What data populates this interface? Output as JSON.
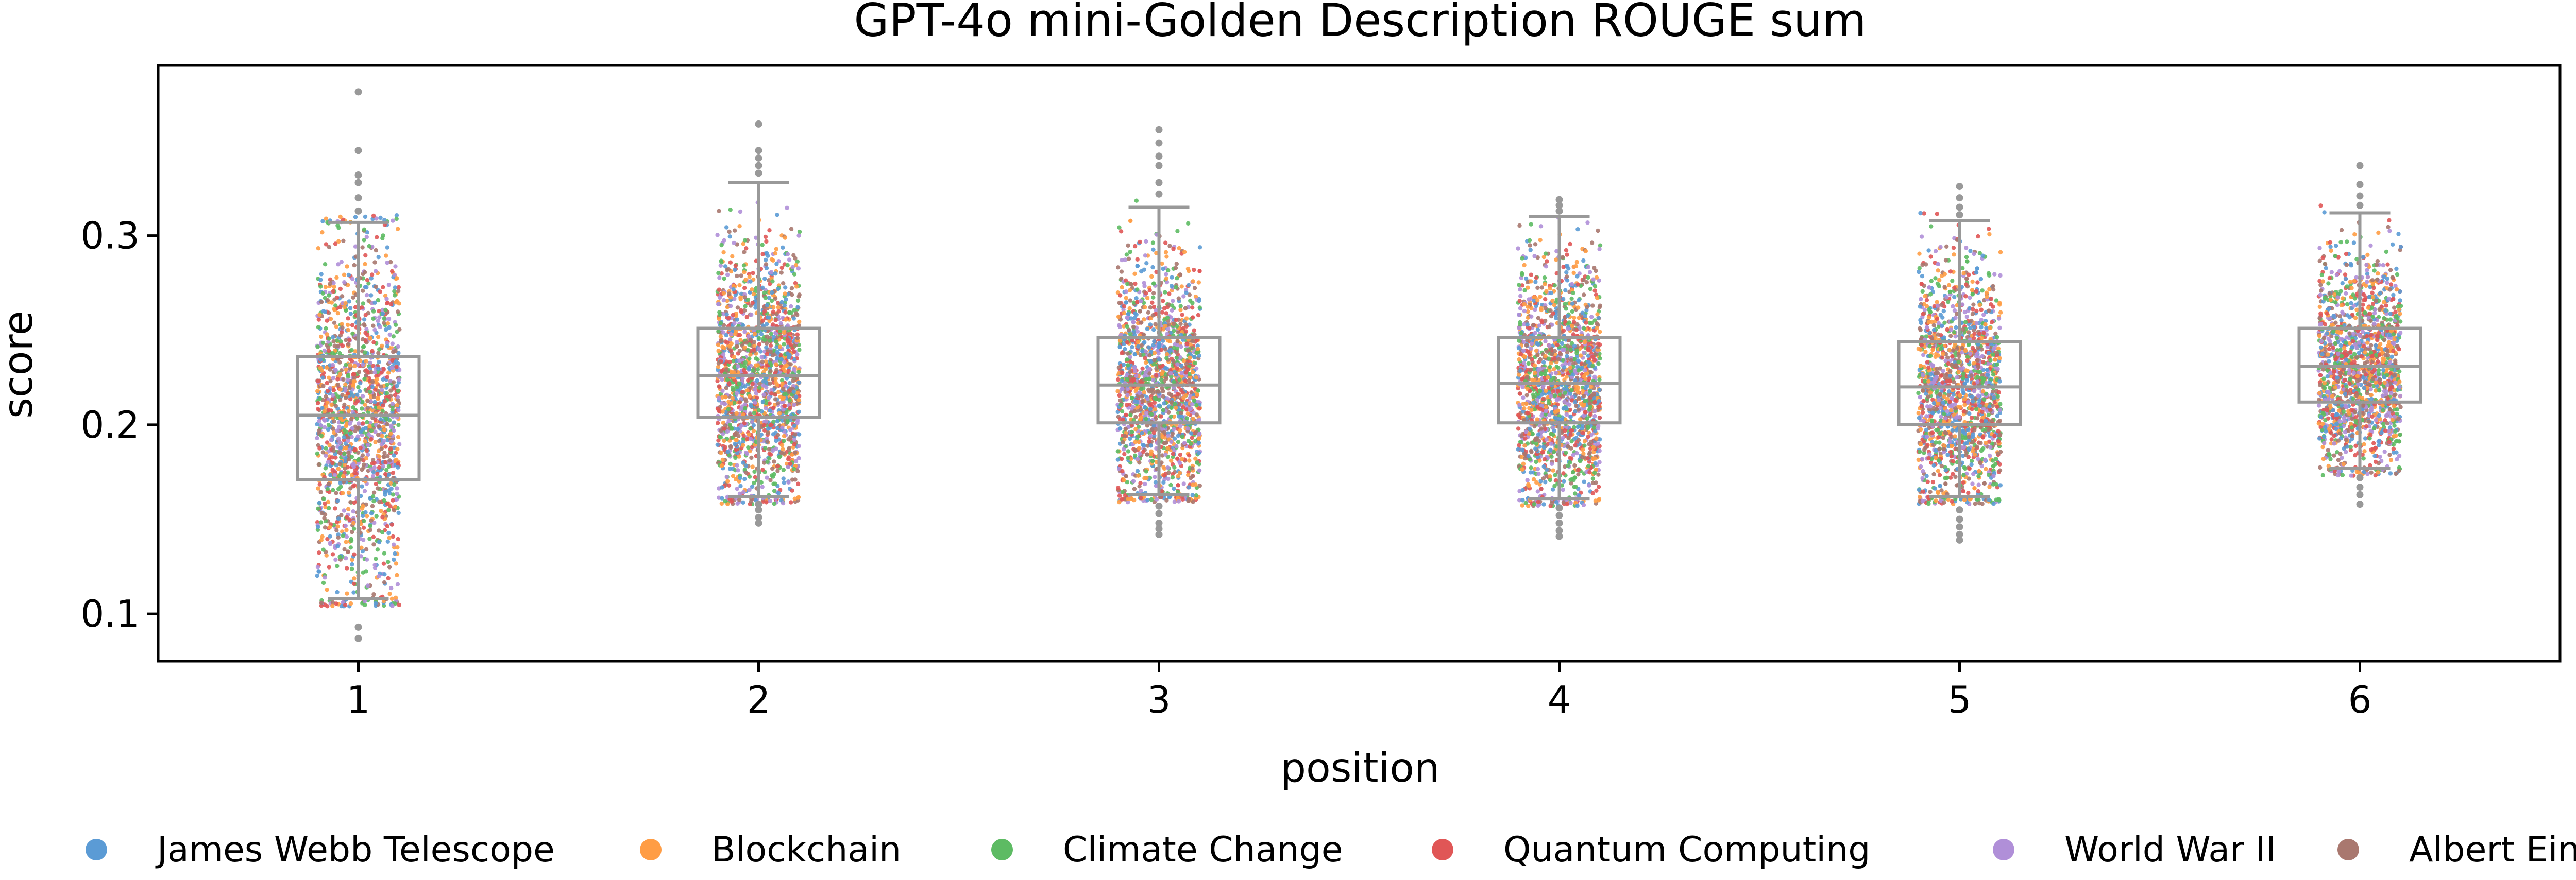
{
  "chart_data": {
    "type": "box-strip",
    "title": "GPT-4o mini-Golden Description ROUGE sum",
    "xlabel": "position",
    "ylabel": "score",
    "categories": [
      "1",
      "2",
      "3",
      "4",
      "5",
      "6"
    ],
    "ylim": [
      0.075,
      0.39
    ],
    "yticks": [
      0.1,
      0.2,
      0.3
    ],
    "grid": false,
    "legend_position": "bottom",
    "boxes": [
      {
        "position": "1",
        "whisker_low": 0.108,
        "q1": 0.171,
        "median": 0.205,
        "q3": 0.236,
        "whisker_high": 0.307,
        "outliers": [
          0.087,
          0.093,
          0.313,
          0.32,
          0.328,
          0.332,
          0.345,
          0.376
        ]
      },
      {
        "position": "2",
        "whisker_low": 0.162,
        "q1": 0.204,
        "median": 0.226,
        "q3": 0.251,
        "whisker_high": 0.328,
        "outliers": [
          0.148,
          0.151,
          0.155,
          0.158,
          0.333,
          0.337,
          0.341,
          0.345,
          0.359
        ]
      },
      {
        "position": "3",
        "whisker_low": 0.163,
        "q1": 0.201,
        "median": 0.221,
        "q3": 0.246,
        "whisker_high": 0.315,
        "outliers": [
          0.142,
          0.145,
          0.148,
          0.153,
          0.157,
          0.322,
          0.328,
          0.337,
          0.342,
          0.349,
          0.356
        ]
      },
      {
        "position": "4",
        "whisker_low": 0.161,
        "q1": 0.201,
        "median": 0.222,
        "q3": 0.246,
        "whisker_high": 0.31,
        "outliers": [
          0.141,
          0.144,
          0.148,
          0.152,
          0.156,
          0.313,
          0.316,
          0.319
        ]
      },
      {
        "position": "5",
        "whisker_low": 0.162,
        "q1": 0.2,
        "median": 0.22,
        "q3": 0.244,
        "whisker_high": 0.308,
        "outliers": [
          0.139,
          0.142,
          0.146,
          0.15,
          0.155,
          0.311,
          0.315,
          0.32,
          0.326
        ]
      },
      {
        "position": "6",
        "whisker_low": 0.177,
        "q1": 0.212,
        "median": 0.231,
        "q3": 0.251,
        "whisker_high": 0.312,
        "outliers": [
          0.158,
          0.163,
          0.167,
          0.172,
          0.316,
          0.321,
          0.327,
          0.337
        ]
      }
    ],
    "series": [
      {
        "name": "James Webb Telescope",
        "color": "#5b9bd5"
      },
      {
        "name": "Blockchain",
        "color": "#ff9d45"
      },
      {
        "name": "Climate Change",
        "color": "#5dbb63"
      },
      {
        "name": "Quantum Computing",
        "color": "#e05656"
      },
      {
        "name": "World War II",
        "color": "#b08fd8"
      },
      {
        "name": "Albert Einstein",
        "color": "#a9786f"
      }
    ],
    "box_color": "#999999"
  }
}
